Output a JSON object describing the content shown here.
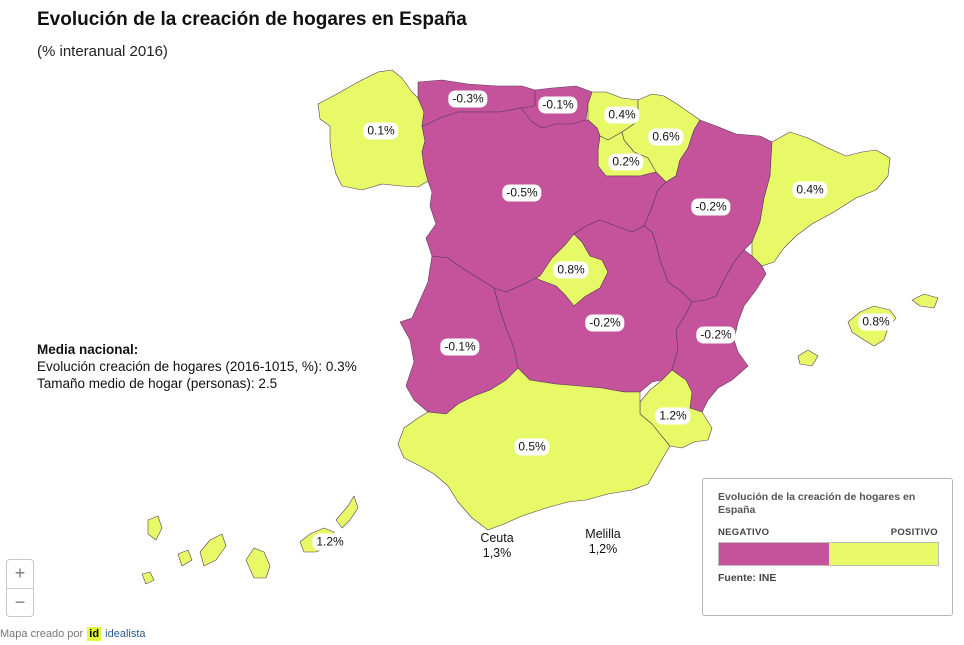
{
  "title": "Evolución de la creación de hogares en España",
  "subtitle": "(% interanual 2016)",
  "national": {
    "title": "Media nacional:",
    "line1": "Evolución creación de hogares (2016-1015, %): 0.3%",
    "line2": "Tamaño medio de hogar (personas): 2.5"
  },
  "colors": {
    "negative": "#c5539c",
    "positive": "#e7f966",
    "border": "#5a3a5a"
  },
  "regions": [
    {
      "name": "Galicia",
      "label": "0.1%",
      "class": "positive"
    },
    {
      "name": "Asturias",
      "label": "-0.3%",
      "class": "negative"
    },
    {
      "name": "Cantabria",
      "label": "-0.1%",
      "class": "negative"
    },
    {
      "name": "País Vasco",
      "label": "0.4%",
      "class": "positive"
    },
    {
      "name": "Navarra",
      "label": "0.6%",
      "class": "positive"
    },
    {
      "name": "La Rioja",
      "label": "0.2%",
      "class": "positive"
    },
    {
      "name": "Castilla y León",
      "label": "-0.5%",
      "class": "negative"
    },
    {
      "name": "Aragón",
      "label": "-0.2%",
      "class": "negative"
    },
    {
      "name": "Cataluña",
      "label": "0.4%",
      "class": "positive"
    },
    {
      "name": "Madrid",
      "label": "0.8%",
      "class": "positive"
    },
    {
      "name": "Castilla-La Mancha",
      "label": "-0.2%",
      "class": "negative"
    },
    {
      "name": "Extremadura",
      "label": "-0.1%",
      "class": "negative"
    },
    {
      "name": "Comunidad Valenciana",
      "label": "-0.2%",
      "class": "negative"
    },
    {
      "name": "Islas Baleares",
      "label": "0.8%",
      "class": "positive"
    },
    {
      "name": "Murcia",
      "label": "1.2%",
      "class": "positive"
    },
    {
      "name": "Andalucía",
      "label": "0.5%",
      "class": "positive"
    },
    {
      "name": "Canarias",
      "label": "1.2%",
      "class": "positive"
    }
  ],
  "cities": [
    {
      "name": "Ceuta",
      "value": "1,3%"
    },
    {
      "name": "Melilla",
      "value": "1,2%"
    }
  ],
  "legend": {
    "title": "Evolución de la creación de hogares en España",
    "negative": "NEGATIVO",
    "positive": "POSITIVO",
    "source": "Fuente: INE"
  },
  "zoom": {
    "in": "+",
    "out": "−"
  },
  "credit": {
    "prefix": "Mapa creado por",
    "logo": "id",
    "brand": "idealista"
  }
}
